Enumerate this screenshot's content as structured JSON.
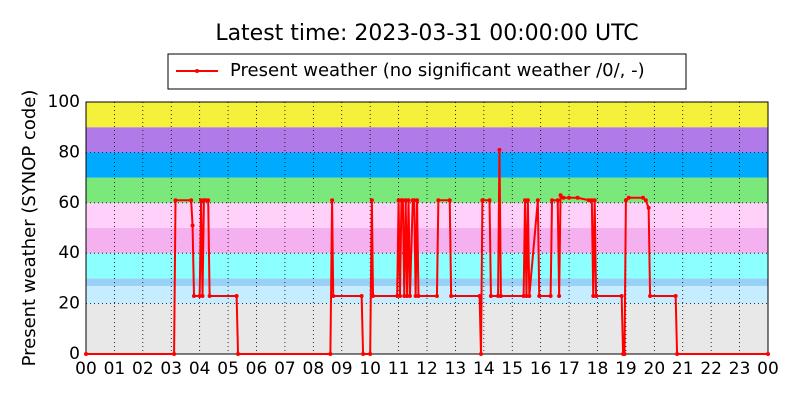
{
  "chart_data": {
    "type": "line",
    "title": "Latest time: 2023-03-31 00:00:00 UTC",
    "y_label": "Present weather (SYNOP code)",
    "legend_position": "top",
    "grid": true,
    "x": [
      0,
      3.1,
      3.15,
      3.7,
      3.75,
      3.8,
      4.0,
      4.05,
      4.1,
      4.15,
      4.2,
      4.3,
      4.35,
      5.3,
      5.35,
      8.6,
      8.66,
      8.7,
      9.7,
      9.75,
      10.0,
      10.06,
      10.1,
      10.95,
      11.0,
      11.05,
      11.1,
      11.15,
      11.2,
      11.25,
      11.3,
      11.35,
      11.4,
      11.5,
      11.55,
      11.6,
      11.65,
      11.7,
      12.35,
      12.4,
      12.8,
      12.85,
      13.85,
      13.9,
      13.95,
      14.2,
      14.25,
      14.5,
      14.55,
      14.6,
      15.4,
      15.45,
      15.5,
      15.55,
      15.6,
      15.9,
      15.95,
      16.35,
      16.4,
      16.6,
      16.65,
      16.7,
      16.8,
      17.0,
      17.3,
      17.7,
      17.8,
      17.85,
      17.9,
      17.95,
      18.85,
      18.9,
      18.95,
      19.0,
      19.1,
      19.6,
      19.7,
      19.8,
      19.85,
      20.75,
      20.8,
      24
    ],
    "series": [
      {
        "name": "Present weather (no significant weather /0/, -)",
        "color": "#ff0000",
        "values": [
          0,
          0,
          61,
          61,
          51,
          23,
          23,
          61,
          23,
          61,
          61,
          61,
          23,
          23,
          0,
          0,
          61,
          23,
          23,
          0,
          0,
          61,
          23,
          23,
          61,
          23,
          61,
          61,
          23,
          61,
          23,
          61,
          23,
          61,
          61,
          23,
          61,
          23,
          23,
          61,
          61,
          23,
          23,
          0,
          61,
          61,
          23,
          23,
          81,
          23,
          23,
          61,
          23,
          61,
          23,
          61,
          23,
          23,
          61,
          61,
          23,
          63,
          62,
          62,
          62,
          61,
          61,
          23,
          61,
          23,
          23,
          0,
          0,
          61,
          62,
          62,
          61,
          58,
          23,
          23,
          0,
          0
        ]
      }
    ],
    "bands": [
      {
        "from": 0,
        "to": 20,
        "color": "#e8e8e8"
      },
      {
        "from": 20,
        "to": 27,
        "color": "#c6ecff"
      },
      {
        "from": 27,
        "to": 30,
        "color": "#99d0f5"
      },
      {
        "from": 30,
        "to": 40,
        "color": "#8cffff"
      },
      {
        "from": 40,
        "to": 50,
        "color": "#f5b0f0"
      },
      {
        "from": 50,
        "to": 60,
        "color": "#ffd0fa"
      },
      {
        "from": 60,
        "to": 70,
        "color": "#7ae87a"
      },
      {
        "from": 70,
        "to": 80,
        "color": "#00aaff"
      },
      {
        "from": 80,
        "to": 90,
        "color": "#b07ae8"
      },
      {
        "from": 90,
        "to": 100,
        "color": "#f5f03a"
      }
    ],
    "xlim": [
      0,
      24
    ],
    "xticks": [
      {
        "value": 0,
        "label": "00"
      },
      {
        "value": 1,
        "label": "01"
      },
      {
        "value": 2,
        "label": "02"
      },
      {
        "value": 3,
        "label": "03"
      },
      {
        "value": 4,
        "label": "04"
      },
      {
        "value": 5,
        "label": "05"
      },
      {
        "value": 6,
        "label": "06"
      },
      {
        "value": 7,
        "label": "07"
      },
      {
        "value": 8,
        "label": "08"
      },
      {
        "value": 9,
        "label": "09"
      },
      10,
      11,
      12,
      13,
      14,
      15,
      16,
      17,
      18,
      19,
      20,
      21,
      22,
      23,
      {
        "value": 24,
        "label": "00"
      }
    ],
    "ylim": [
      0,
      100
    ],
    "yticks": [
      0,
      20,
      40,
      60,
      80,
      100
    ]
  }
}
